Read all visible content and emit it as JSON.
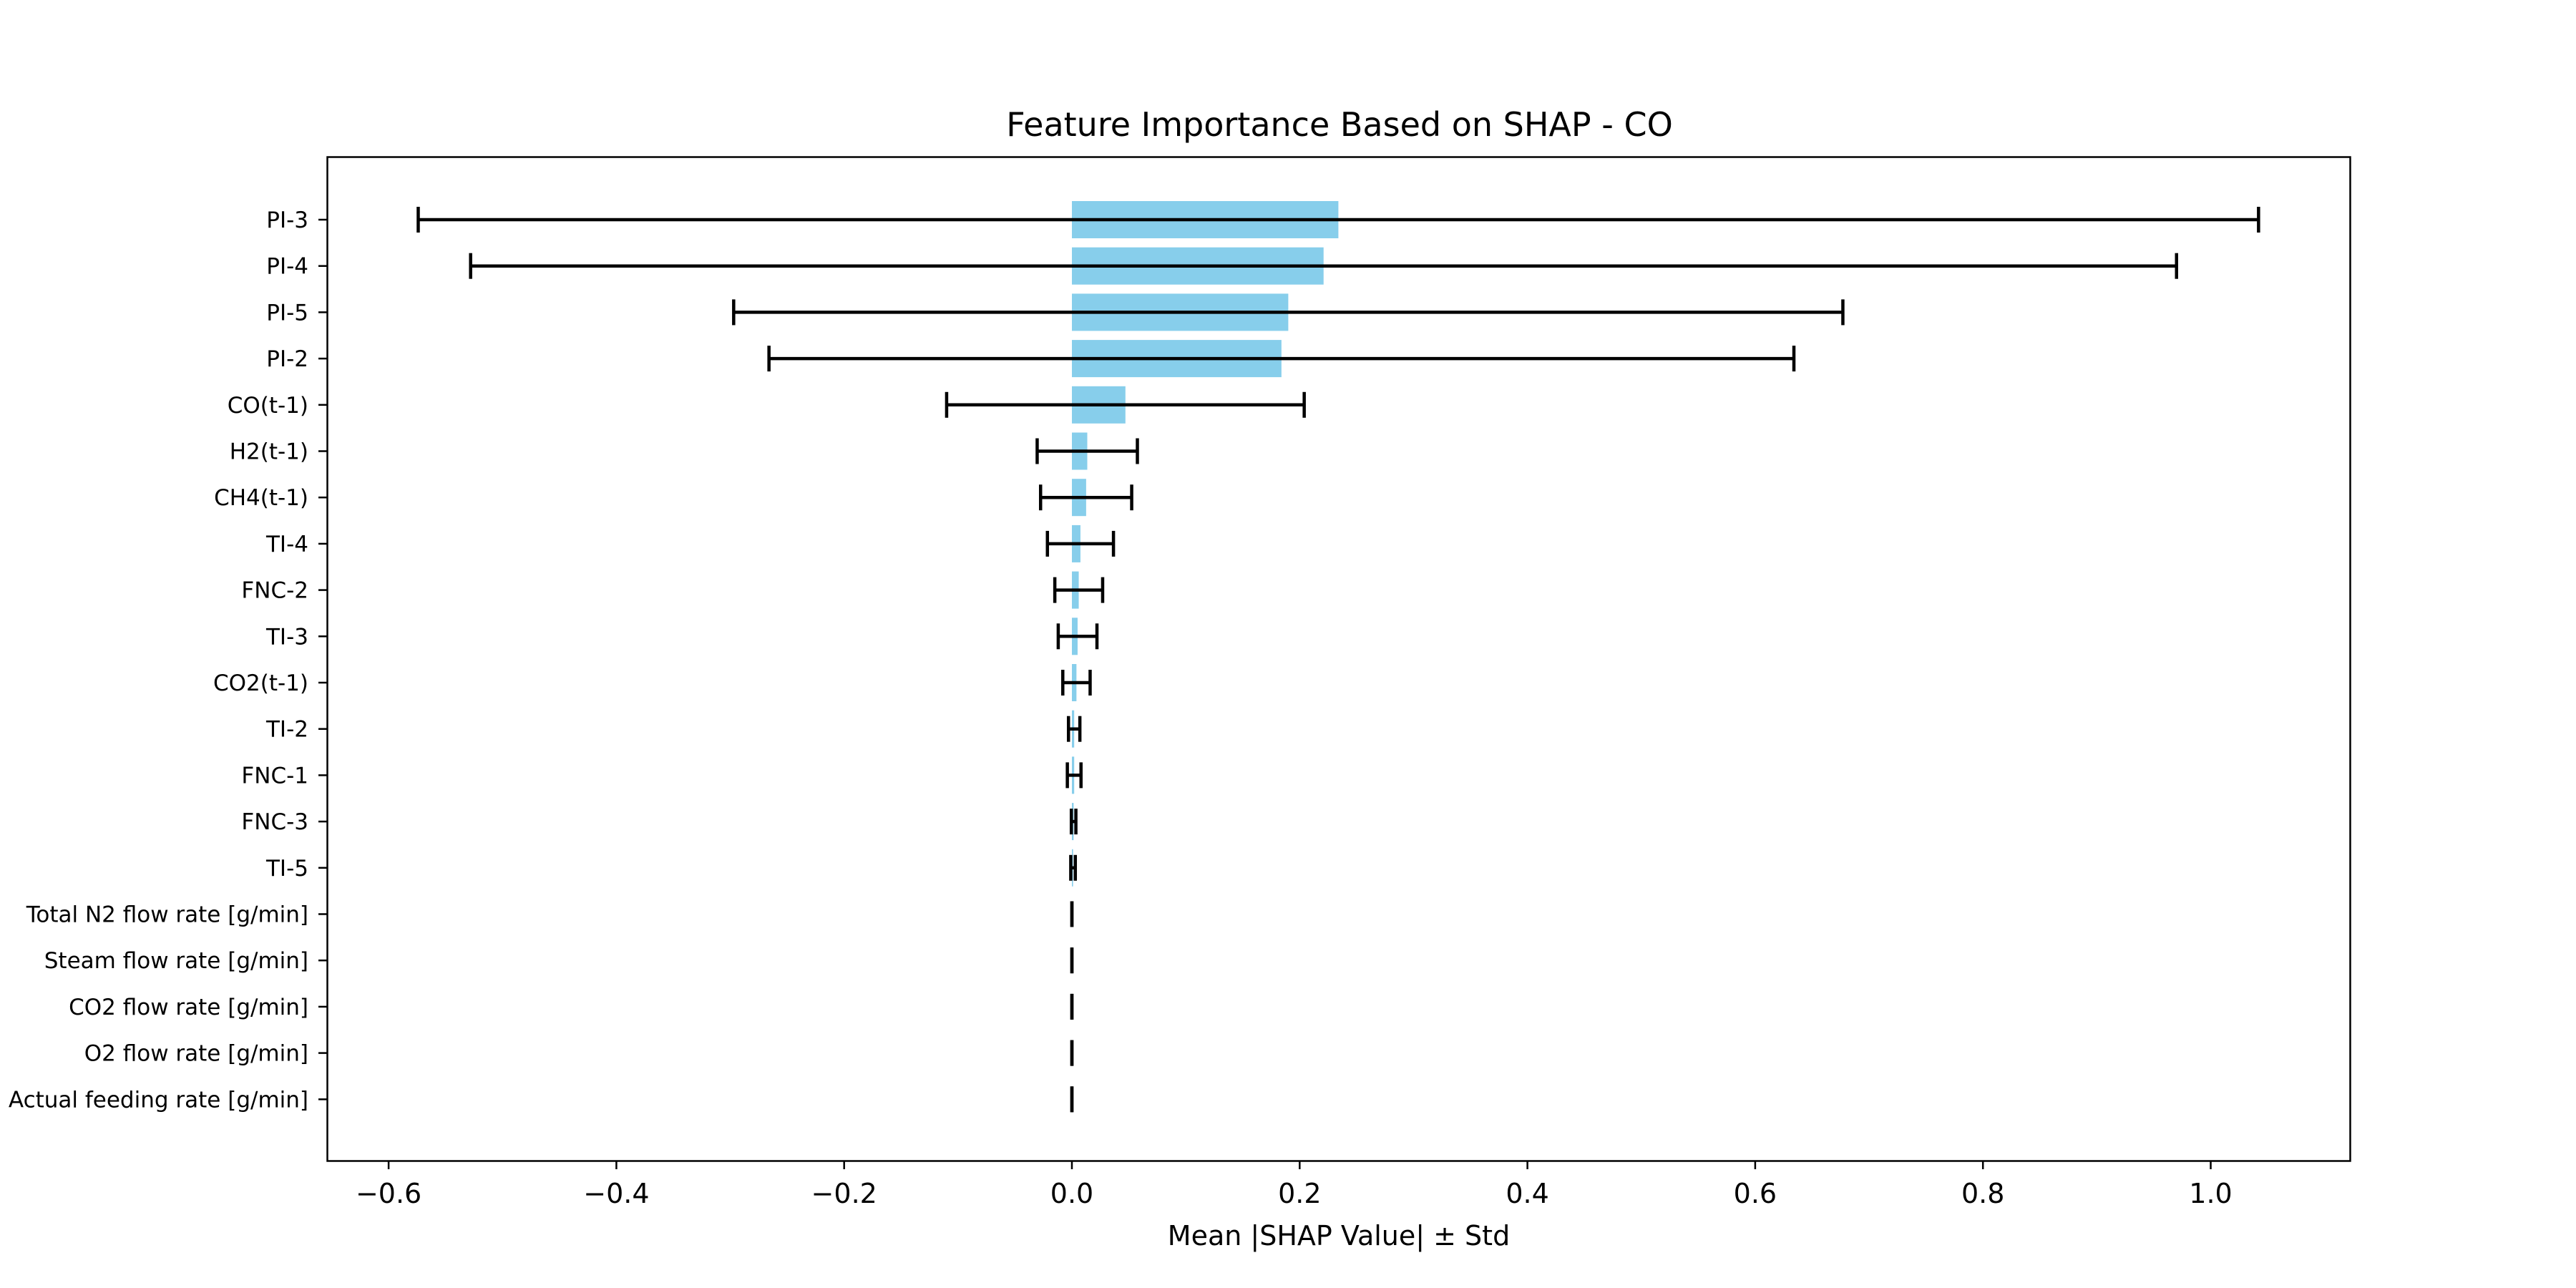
{
  "chart_data": {
    "type": "bar",
    "orientation": "horizontal",
    "title": "Feature Importance Based on SHAP - CO",
    "xlabel": "Mean |SHAP Value| ± Std",
    "ylabel": "",
    "xlim": [
      -0.655,
      1.12
    ],
    "xticks": [
      -0.6,
      -0.4,
      -0.2,
      0.0,
      0.2,
      0.4,
      0.6,
      0.8,
      1.0
    ],
    "xtick_labels": [
      "−0.6",
      "−0.4",
      "−0.2",
      "0.0",
      "0.2",
      "0.4",
      "0.6",
      "0.8",
      "1.0"
    ],
    "grid": false,
    "bar_color": "#87ceeb",
    "error_color": "#000000",
    "categories": [
      "PI-3",
      "PI-4",
      "PI-5",
      "PI-2",
      "CO(t-1)",
      "H2(t-1)",
      "CH4(t-1)",
      "TI-4",
      "FNC-2",
      "TI-3",
      "CO2(t-1)",
      "TI-2",
      "FNC-1",
      "FNC-3",
      "TI-5",
      "Total N2 flow rate [g/min]",
      "Steam flow rate [g/min]",
      "CO2 flow rate [g/min]",
      "O2 flow rate [g/min]",
      "Actual feeding rate [g/min]"
    ],
    "values": [
      0.234,
      0.221,
      0.19,
      0.184,
      0.047,
      0.0135,
      0.0125,
      0.0075,
      0.006,
      0.005,
      0.004,
      0.002,
      0.002,
      0.0015,
      0.001,
      0.0,
      0.0,
      0.0,
      0.0,
      0.0
    ],
    "errors": [
      0.808,
      0.749,
      0.487,
      0.45,
      0.157,
      0.044,
      0.04,
      0.029,
      0.021,
      0.017,
      0.012,
      0.005,
      0.006,
      0.002,
      0.002,
      0.0,
      0.0,
      0.0,
      0.0,
      0.0
    ]
  }
}
